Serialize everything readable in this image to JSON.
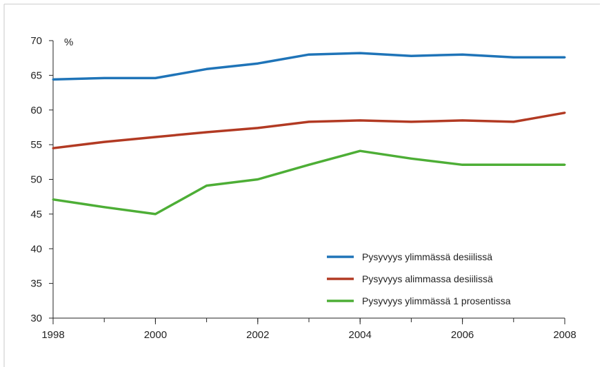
{
  "chart_data": {
    "type": "line",
    "title": "",
    "xlabel": "",
    "ylabel": "",
    "y_unit": "%",
    "xlim": [
      1998,
      2008
    ],
    "ylim": [
      30,
      70
    ],
    "x_ticks": [
      1998,
      2000,
      2002,
      2004,
      2006,
      2008
    ],
    "y_ticks": [
      30,
      35,
      40,
      45,
      50,
      55,
      60,
      65,
      70
    ],
    "grid": false,
    "legend_position": "bottom-right",
    "x": [
      1998,
      1999,
      2000,
      2001,
      2002,
      2003,
      2004,
      2005,
      2006,
      2007,
      2008
    ],
    "series": [
      {
        "name": "Pysyvyys ylimmässä desiilissä",
        "color": "#1f74b8",
        "values": [
          64.4,
          64.6,
          64.6,
          65.9,
          66.7,
          68.0,
          68.2,
          67.8,
          68.0,
          67.6,
          67.6
        ]
      },
      {
        "name": "Pysyvyys alimmassa desiilissä",
        "color": "#b23a23",
        "values": [
          54.5,
          55.4,
          56.1,
          56.8,
          57.4,
          58.3,
          58.5,
          58.3,
          58.5,
          58.3,
          59.6
        ]
      },
      {
        "name": "Pysyvyys ylimmässä 1 prosentissa",
        "color": "#4dae36",
        "values": [
          47.1,
          46.0,
          45.0,
          49.1,
          50.0,
          52.1,
          54.1,
          53.0,
          52.1,
          52.1,
          52.1
        ]
      }
    ]
  }
}
